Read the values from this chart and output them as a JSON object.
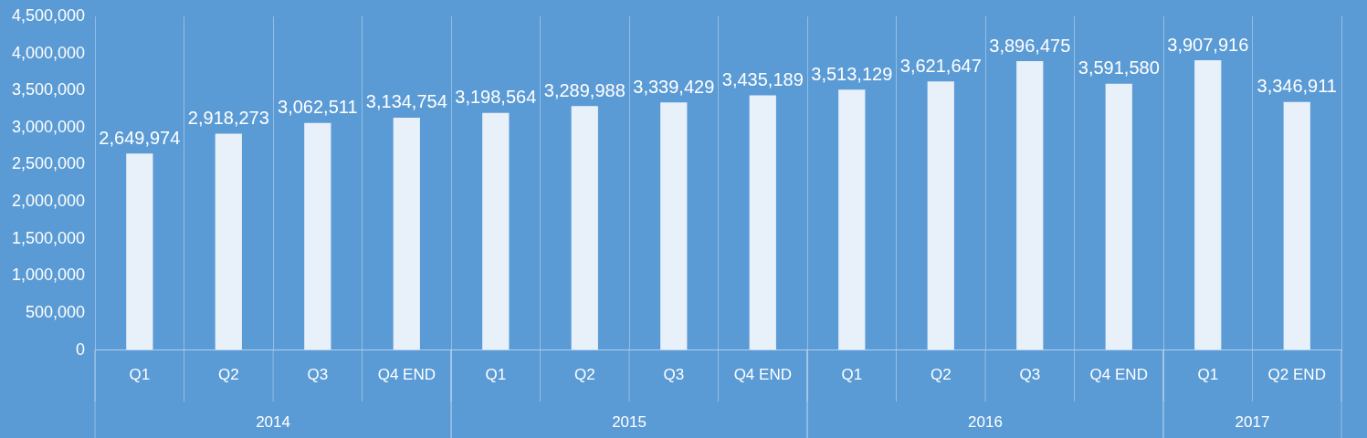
{
  "chart_data": {
    "type": "bar",
    "categories": [
      "Q1",
      "Q2",
      "Q3",
      "Q4 END",
      "Q1",
      "Q2",
      "Q3",
      "Q4 END",
      "Q1",
      "Q2",
      "Q3",
      "Q4 END",
      "Q1",
      "Q2 END"
    ],
    "values": [
      2649974,
      2918273,
      3062511,
      3134754,
      3198564,
      3289988,
      3339429,
      3435189,
      3513129,
      3621647,
      3896475,
      3591580,
      3907916,
      3346911
    ],
    "color": "#e8f0fa",
    "value_labels": [
      "2,649,974",
      "2,918,273",
      "3,062,511",
      "3,134,754",
      "3,198,564",
      "3,289,988",
      "3,339,429",
      "3,435,189",
      "3,513,129",
      "3,621,647",
      "3,896,475",
      "3,591,580",
      "3,907,916",
      "3,346,911"
    ],
    "ylim": [
      0,
      4500000
    ],
    "yticks": [
      0,
      {
        "value": 500000,
        "label": "500,000"
      },
      {
        "value": 1000000,
        "label": "1,000,000"
      },
      {
        "value": 1500000,
        "label": "1,500,000"
      },
      {
        "value": 2000000,
        "label": "2,000,000"
      },
      {
        "value": 2500000,
        "label": "2,500,000"
      },
      {
        "value": 3000000,
        "label": "3,000,000"
      },
      {
        "value": 3500000,
        "label": "3,500,000"
      },
      {
        "value": 4000000,
        "label": "4,000,000"
      },
      {
        "value": 4500000,
        "label": "4,500,000"
      }
    ],
    "grid": "x",
    "annotations": [
      "2014",
      "2015",
      "2016",
      "2017"
    ]
  }
}
